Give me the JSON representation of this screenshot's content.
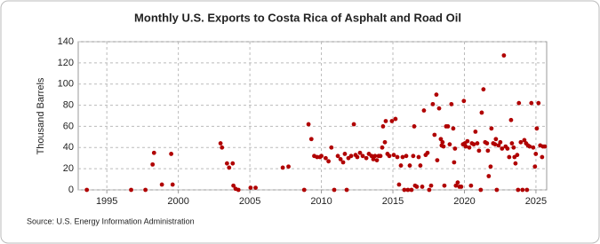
{
  "chart_data": {
    "type": "scatter",
    "title": "Monthly U.S. Exports to Costa Rica of Asphalt and Road Oil",
    "y_label": "Thousand Barrels",
    "source": "Source: U.S. Energy Information Administration",
    "color": "#b00000",
    "grid": true,
    "xlim": [
      1993,
      2025.75
    ],
    "xticks": [
      1995,
      2000,
      2005,
      2010,
      2015,
      2020,
      2025
    ],
    "ylim": [
      0,
      140
    ],
    "yticks": [
      0,
      20,
      40,
      60,
      80,
      100,
      120,
      140
    ],
    "x": [
      1993.6,
      1996.7,
      1997.7,
      1998.2,
      1998.3,
      1998.85,
      1999.5,
      1999.6,
      2002.95,
      2003.05,
      2003.4,
      2003.55,
      2003.8,
      2003.85,
      2004.0,
      2004.2,
      2005.05,
      2005.4,
      2007.3,
      2007.7,
      2008.8,
      2009.1,
      2009.3,
      2009.5,
      2009.7,
      2009.9,
      2010.0,
      2010.3,
      2010.5,
      2010.7,
      2010.9,
      2011.15,
      2011.34,
      2011.52,
      2011.64,
      2011.77,
      2011.89,
      2012.08,
      2012.27,
      2012.39,
      2012.51,
      2012.7,
      2012.89,
      2013.14,
      2013.32,
      2013.51,
      2013.63,
      2013.75,
      2013.88,
      2014.0,
      2014.13,
      2014.25,
      2014.31,
      2014.44,
      2014.5,
      2014.62,
      2014.75,
      2014.93,
      2015.06,
      2015.18,
      2015.31,
      2015.43,
      2015.56,
      2015.68,
      2015.8,
      2015.93,
      2016.05,
      2016.18,
      2016.3,
      2016.42,
      2016.49,
      2016.55,
      2016.67,
      2016.8,
      2016.92,
      2017.05,
      2017.17,
      2017.29,
      2017.42,
      2017.54,
      2017.67,
      2017.79,
      2017.91,
      2018.04,
      2018.1,
      2018.23,
      2018.35,
      2018.41,
      2018.47,
      2018.54,
      2018.6,
      2018.72,
      2018.85,
      2018.97,
      2019.09,
      2019.22,
      2019.28,
      2019.34,
      2019.4,
      2019.53,
      2019.65,
      2019.78,
      2019.9,
      2019.96,
      2020.03,
      2020.09,
      2020.21,
      2020.34,
      2020.46,
      2020.52,
      2020.65,
      2020.77,
      2020.9,
      2021.02,
      2021.14,
      2021.21,
      2021.33,
      2021.45,
      2021.58,
      2021.64,
      2021.7,
      2021.83,
      2021.89,
      2022.01,
      2022.14,
      2022.2,
      2022.26,
      2022.39,
      2022.51,
      2022.63,
      2022.76,
      2022.88,
      2023.01,
      2023.13,
      2023.26,
      2023.32,
      2023.44,
      2023.5,
      2023.57,
      2023.69,
      2023.75,
      2023.81,
      2023.94,
      2024.06,
      2024.19,
      2024.31,
      2024.37,
      2024.44,
      2024.56,
      2024.68,
      2024.81,
      2024.93,
      2024.99,
      2025.06,
      2025.18,
      2025.3,
      2025.43,
      2025.49,
      2025.62
    ],
    "values": [
      0,
      0,
      0,
      24,
      35,
      5,
      34,
      5,
      44,
      40,
      25,
      21,
      25,
      4,
      1,
      0,
      2,
      2,
      21,
      22,
      0,
      62,
      48,
      32,
      31,
      31,
      32,
      30,
      27,
      40,
      0,
      32,
      29,
      26,
      34,
      0,
      30,
      32,
      62,
      33,
      31,
      35,
      32,
      30,
      34,
      32,
      29,
      32,
      28,
      32,
      32,
      40,
      60,
      45,
      65,
      34,
      32,
      65,
      33,
      67,
      31,
      5,
      23,
      31,
      0,
      32,
      0,
      23,
      0,
      32,
      60,
      4,
      3,
      31,
      23,
      3,
      75,
      33,
      35,
      0,
      4,
      81,
      52,
      90,
      28,
      77,
      48,
      42,
      45,
      41,
      4,
      60,
      60,
      43,
      81,
      58,
      26,
      39,
      4,
      7,
      3,
      3,
      43,
      84,
      44,
      41,
      46,
      40,
      4,
      44,
      43,
      55,
      44,
      37,
      0,
      73,
      95,
      45,
      44,
      37,
      13,
      22,
      58,
      44,
      43,
      48,
      0,
      42,
      45,
      39,
      127,
      41,
      39,
      31,
      66,
      44,
      40,
      31,
      25,
      33,
      0,
      82,
      45,
      0,
      47,
      44,
      0,
      42,
      41,
      82,
      40,
      22,
      34,
      58,
      82,
      42,
      31,
      41,
      41
    ]
  }
}
